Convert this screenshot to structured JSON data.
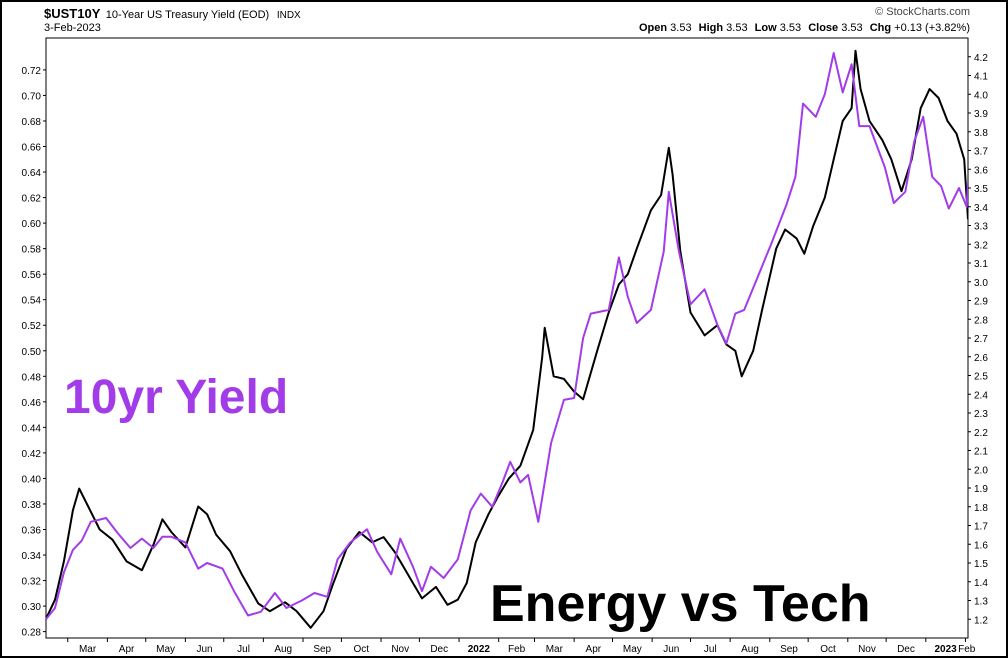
{
  "header": {
    "symbol": "$UST10Y",
    "name": "10-Year US Treasury Yield (EOD)",
    "exchange": "INDX",
    "date": "3-Feb-2023",
    "credit": "© StockCharts.com",
    "ohlc": {
      "open_label": "Open",
      "open": "3.53",
      "high_label": "High",
      "high": "3.53",
      "low_label": "Low",
      "low": "3.53",
      "close_label": "Close",
      "close": "3.53",
      "chg_label": "Chg",
      "chg": "+0.13 (+3.82%)"
    }
  },
  "annotations": {
    "yield_label": "10yr Yield",
    "energy_label": "Energy vs Tech"
  },
  "colors": {
    "yield_line": "#a23ce8",
    "ratio_line": "#000000",
    "grid": "#d9d9d9"
  },
  "chart_data": {
    "type": "line",
    "x_tick_labels": [
      "Mar",
      "Apr",
      "May",
      "Jun",
      "Jul",
      "Aug",
      "Sep",
      "Oct",
      "Nov",
      "Dec",
      "2022",
      "Feb",
      "Mar",
      "Apr",
      "May",
      "Jun",
      "Jul",
      "Aug",
      "Sep",
      "Oct",
      "Nov",
      "Dec",
      "2023",
      "Feb"
    ],
    "x_tick_bold": [
      "2022",
      "2023"
    ],
    "x_range": [
      "2021-02-12",
      "2023-02-03"
    ],
    "left_axis": {
      "ylim": [
        0.275,
        0.745
      ],
      "ticks": [
        "0.28",
        "0.30",
        "0.32",
        "0.34",
        "0.36",
        "0.38",
        "0.40",
        "0.42",
        "0.44",
        "0.46",
        "0.48",
        "0.50",
        "0.52",
        "0.54",
        "0.56",
        "0.58",
        "0.60",
        "0.62",
        "0.64",
        "0.66",
        "0.68",
        "0.70",
        "0.72"
      ]
    },
    "right_axis": {
      "ylim": [
        1.1,
        4.3
      ],
      "ticks": [
        "1.2",
        "1.3",
        "1.4",
        "1.5",
        "1.6",
        "1.7",
        "1.8",
        "1.9",
        "2.0",
        "2.1",
        "2.2",
        "2.3",
        "2.4",
        "2.5",
        "2.6",
        "2.7",
        "2.8",
        "2.9",
        "3.0",
        "3.1",
        "3.2",
        "3.3",
        "3.4",
        "3.5",
        "3.6",
        "3.7",
        "3.8",
        "3.9",
        "4.0",
        "4.1",
        "4.2"
      ]
    },
    "grid": false,
    "series": [
      {
        "axis": "left",
        "points": [
          [
            "2021-02-12",
            0.29
          ],
          [
            "2021-02-19",
            0.305
          ],
          [
            "2021-02-26",
            0.335
          ],
          [
            "2021-03-05",
            0.375
          ],
          [
            "2021-03-10",
            0.392
          ],
          [
            "2021-03-17",
            0.378
          ],
          [
            "2021-03-26",
            0.36
          ],
          [
            "2021-04-05",
            0.352
          ],
          [
            "2021-04-16",
            0.335
          ],
          [
            "2021-04-28",
            0.328
          ],
          [
            "2021-05-07",
            0.348
          ],
          [
            "2021-05-14",
            0.368
          ],
          [
            "2021-05-21",
            0.358
          ],
          [
            "2021-06-01",
            0.346
          ],
          [
            "2021-06-11",
            0.378
          ],
          [
            "2021-06-18",
            0.372
          ],
          [
            "2021-06-25",
            0.356
          ],
          [
            "2021-07-06",
            0.343
          ],
          [
            "2021-07-15",
            0.325
          ],
          [
            "2021-07-28",
            0.302
          ],
          [
            "2021-08-06",
            0.296
          ],
          [
            "2021-08-18",
            0.303
          ],
          [
            "2021-08-27",
            0.296
          ],
          [
            "2021-09-07",
            0.283
          ],
          [
            "2021-09-17",
            0.296
          ],
          [
            "2021-09-24",
            0.316
          ],
          [
            "2021-10-05",
            0.345
          ],
          [
            "2021-10-15",
            0.358
          ],
          [
            "2021-10-25",
            0.35
          ],
          [
            "2021-11-03",
            0.354
          ],
          [
            "2021-11-12",
            0.342
          ],
          [
            "2021-11-26",
            0.318
          ],
          [
            "2021-12-03",
            0.306
          ],
          [
            "2021-12-14",
            0.315
          ],
          [
            "2021-12-23",
            0.301
          ],
          [
            "2021-12-31",
            0.305
          ],
          [
            "2022-01-07",
            0.318
          ],
          [
            "2022-01-14",
            0.35
          ],
          [
            "2022-01-24",
            0.372
          ],
          [
            "2022-01-31",
            0.385
          ],
          [
            "2022-02-09",
            0.4
          ],
          [
            "2022-02-18",
            0.41
          ],
          [
            "2022-02-28",
            0.438
          ],
          [
            "2022-03-07",
            0.495
          ],
          [
            "2022-03-09",
            0.518
          ],
          [
            "2022-03-16",
            0.48
          ],
          [
            "2022-03-24",
            0.478
          ],
          [
            "2022-04-01",
            0.468
          ],
          [
            "2022-04-08",
            0.462
          ],
          [
            "2022-04-19",
            0.5
          ],
          [
            "2022-04-28",
            0.53
          ],
          [
            "2022-05-06",
            0.552
          ],
          [
            "2022-05-13",
            0.56
          ],
          [
            "2022-05-20",
            0.58
          ],
          [
            "2022-05-31",
            0.61
          ],
          [
            "2022-06-08",
            0.622
          ],
          [
            "2022-06-14",
            0.659
          ],
          [
            "2022-06-17",
            0.638
          ],
          [
            "2022-06-23",
            0.578
          ],
          [
            "2022-07-01",
            0.53
          ],
          [
            "2022-07-12",
            0.512
          ],
          [
            "2022-07-22",
            0.52
          ],
          [
            "2022-07-29",
            0.505
          ],
          [
            "2022-08-05",
            0.5
          ],
          [
            "2022-08-10",
            0.48
          ],
          [
            "2022-08-19",
            0.5
          ],
          [
            "2022-08-26",
            0.532
          ],
          [
            "2022-09-06",
            0.58
          ],
          [
            "2022-09-13",
            0.595
          ],
          [
            "2022-09-22",
            0.588
          ],
          [
            "2022-09-28",
            0.576
          ],
          [
            "2022-10-05",
            0.598
          ],
          [
            "2022-10-14",
            0.62
          ],
          [
            "2022-10-21",
            0.65
          ],
          [
            "2022-10-28",
            0.68
          ],
          [
            "2022-11-04",
            0.69
          ],
          [
            "2022-11-07",
            0.735
          ],
          [
            "2022-11-11",
            0.705
          ],
          [
            "2022-11-18",
            0.68
          ],
          [
            "2022-11-28",
            0.665
          ],
          [
            "2022-12-05",
            0.65
          ],
          [
            "2022-12-13",
            0.625
          ],
          [
            "2022-12-21",
            0.65
          ],
          [
            "2022-12-28",
            0.69
          ],
          [
            "2023-01-04",
            0.705
          ],
          [
            "2023-01-11",
            0.698
          ],
          [
            "2023-01-18",
            0.68
          ],
          [
            "2023-01-25",
            0.67
          ],
          [
            "2023-01-31",
            0.65
          ],
          [
            "2023-02-03",
            0.603
          ]
        ]
      },
      {
        "axis": "right",
        "points": [
          [
            "2021-02-12",
            1.2
          ],
          [
            "2021-02-19",
            1.26
          ],
          [
            "2021-02-26",
            1.45
          ],
          [
            "2021-03-05",
            1.57
          ],
          [
            "2021-03-12",
            1.62
          ],
          [
            "2021-03-19",
            1.72
          ],
          [
            "2021-03-31",
            1.74
          ],
          [
            "2021-04-09",
            1.66
          ],
          [
            "2021-04-19",
            1.58
          ],
          [
            "2021-04-28",
            1.63
          ],
          [
            "2021-05-07",
            1.58
          ],
          [
            "2021-05-14",
            1.64
          ],
          [
            "2021-05-21",
            1.64
          ],
          [
            "2021-06-01",
            1.61
          ],
          [
            "2021-06-11",
            1.47
          ],
          [
            "2021-06-18",
            1.5
          ],
          [
            "2021-06-30",
            1.47
          ],
          [
            "2021-07-09",
            1.35
          ],
          [
            "2021-07-20",
            1.22
          ],
          [
            "2021-07-30",
            1.24
          ],
          [
            "2021-08-10",
            1.34
          ],
          [
            "2021-08-19",
            1.26
          ],
          [
            "2021-08-31",
            1.3
          ],
          [
            "2021-09-10",
            1.34
          ],
          [
            "2021-09-20",
            1.32
          ],
          [
            "2021-09-28",
            1.52
          ],
          [
            "2021-10-08",
            1.61
          ],
          [
            "2021-10-21",
            1.68
          ],
          [
            "2021-10-29",
            1.56
          ],
          [
            "2021-11-09",
            1.44
          ],
          [
            "2021-11-16",
            1.63
          ],
          [
            "2021-11-26",
            1.48
          ],
          [
            "2021-12-03",
            1.35
          ],
          [
            "2021-12-10",
            1.48
          ],
          [
            "2021-12-20",
            1.42
          ],
          [
            "2021-12-31",
            1.52
          ],
          [
            "2022-01-10",
            1.78
          ],
          [
            "2022-01-18",
            1.87
          ],
          [
            "2022-01-27",
            1.8
          ],
          [
            "2022-02-04",
            1.93
          ],
          [
            "2022-02-10",
            2.04
          ],
          [
            "2022-02-18",
            1.93
          ],
          [
            "2022-02-24",
            1.97
          ],
          [
            "2022-03-04",
            1.72
          ],
          [
            "2022-03-14",
            2.14
          ],
          [
            "2022-03-24",
            2.37
          ],
          [
            "2022-04-01",
            2.38
          ],
          [
            "2022-04-08",
            2.7
          ],
          [
            "2022-04-14",
            2.83
          ],
          [
            "2022-04-28",
            2.85
          ],
          [
            "2022-05-06",
            3.13
          ],
          [
            "2022-05-13",
            2.92
          ],
          [
            "2022-05-20",
            2.78
          ],
          [
            "2022-05-31",
            2.85
          ],
          [
            "2022-06-10",
            3.16
          ],
          [
            "2022-06-14",
            3.48
          ],
          [
            "2022-06-22",
            3.16
          ],
          [
            "2022-07-01",
            2.88
          ],
          [
            "2022-07-12",
            2.96
          ],
          [
            "2022-07-22",
            2.77
          ],
          [
            "2022-07-29",
            2.67
          ],
          [
            "2022-08-05",
            2.83
          ],
          [
            "2022-08-12",
            2.85
          ],
          [
            "2022-08-24",
            3.05
          ],
          [
            "2022-09-02",
            3.2
          ],
          [
            "2022-09-14",
            3.41
          ],
          [
            "2022-09-21",
            3.56
          ],
          [
            "2022-09-27",
            3.95
          ],
          [
            "2022-10-07",
            3.88
          ],
          [
            "2022-10-14",
            4.0
          ],
          [
            "2022-10-21",
            4.22
          ],
          [
            "2022-10-28",
            4.01
          ],
          [
            "2022-11-04",
            4.16
          ],
          [
            "2022-11-10",
            3.83
          ],
          [
            "2022-11-18",
            3.83
          ],
          [
            "2022-11-30",
            3.61
          ],
          [
            "2022-12-07",
            3.42
          ],
          [
            "2022-12-16",
            3.48
          ],
          [
            "2022-12-23",
            3.75
          ],
          [
            "2022-12-30",
            3.88
          ],
          [
            "2023-01-06",
            3.56
          ],
          [
            "2023-01-13",
            3.51
          ],
          [
            "2023-01-19",
            3.39
          ],
          [
            "2023-01-27",
            3.5
          ],
          [
            "2023-02-02",
            3.4
          ],
          [
            "2023-02-03",
            3.53
          ]
        ]
      }
    ]
  }
}
